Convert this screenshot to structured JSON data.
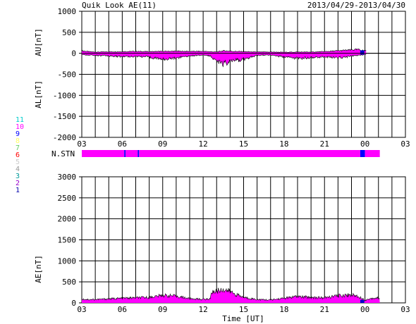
{
  "header": {
    "title": "Quik Look AE(11)",
    "date_range": "2013/04/29-2013/04/30"
  },
  "colors": {
    "fill": "#ff00ff",
    "highlight": "#0000cc",
    "axis": "#000000"
  },
  "station_legend": {
    "items": [
      {
        "label": "11",
        "color": "#00cccc"
      },
      {
        "label": "10",
        "color": "#ff00ff"
      },
      {
        "label": "9",
        "color": "#0000ff"
      },
      {
        "label": "8",
        "color": "#ffff66"
      },
      {
        "label": "7",
        "color": "#66cc66"
      },
      {
        "label": "6",
        "color": "#ff0000"
      },
      {
        "label": "5",
        "color": "#cccccc"
      },
      {
        "label": "4",
        "color": "#999999"
      },
      {
        "label": "3",
        "color": "#009999"
      },
      {
        "label": "2",
        "color": "#9900cc"
      },
      {
        "label": "1",
        "color": "#0000aa"
      }
    ]
  },
  "chart_data": [
    {
      "type": "area",
      "name": "AU/AL panel",
      "ylabel_top": "AU[nT]",
      "ylabel_bottom": "AL[nT]",
      "x_ticks": [
        "03",
        "06",
        "09",
        "12",
        "15",
        "18",
        "21",
        "00",
        "03"
      ],
      "xlim_hours": [
        3,
        27
      ],
      "ylim": [
        -2000,
        1000
      ],
      "y_ticks": [
        1000,
        500,
        0,
        -500,
        -1000,
        -1500,
        -2000
      ],
      "grid": true,
      "data_end_hour": 24.1,
      "highlight_hours": [
        23.65,
        23.95
      ],
      "series": [
        {
          "name": "AU",
          "x": [
            3,
            3.5,
            4,
            5,
            6,
            7,
            8,
            9,
            10,
            11,
            12,
            12.5,
            13,
            13.5,
            14,
            15,
            16,
            17,
            18,
            19,
            20,
            21,
            22,
            23,
            23.5,
            24,
            24.1
          ],
          "values": [
            60,
            40,
            30,
            35,
            40,
            45,
            40,
            45,
            50,
            45,
            45,
            40,
            30,
            60,
            50,
            40,
            30,
            30,
            25,
            30,
            30,
            40,
            60,
            80,
            90,
            60,
            70
          ]
        },
        {
          "name": "AL",
          "x": [
            3,
            3.5,
            4,
            5,
            6,
            7,
            8,
            9,
            10,
            11,
            12,
            12.5,
            13,
            13.5,
            14,
            15,
            16,
            17,
            18,
            19,
            20,
            21,
            22,
            23,
            23.5,
            24,
            24.1
          ],
          "values": [
            -30,
            -40,
            -50,
            -60,
            -80,
            -70,
            -90,
            -140,
            -110,
            -60,
            -40,
            -60,
            -180,
            -250,
            -200,
            -140,
            -50,
            -40,
            -90,
            -120,
            -100,
            -80,
            -110,
            -70,
            -50,
            -30,
            -20
          ]
        }
      ]
    },
    {
      "type": "bar",
      "name": "N.STN",
      "label": "N.STN",
      "xlim_hours": [
        3,
        27
      ],
      "segments": [
        {
          "start": 3,
          "end": 6.15,
          "station_count": 10
        },
        {
          "start": 6.15,
          "end": 6.25,
          "station_count": 9
        },
        {
          "start": 6.25,
          "end": 7.15,
          "station_count": 10
        },
        {
          "start": 7.15,
          "end": 7.25,
          "station_count": 9
        },
        {
          "start": 7.25,
          "end": 23.65,
          "station_count": 10
        },
        {
          "start": 23.65,
          "end": 24.0,
          "station_count": 9
        },
        {
          "start": 24.0,
          "end": 25.1,
          "station_count": 10
        }
      ]
    },
    {
      "type": "area",
      "name": "AE panel",
      "ylabel": "AE[nT]",
      "xlabel": "Time [UT]",
      "x_ticks": [
        "03",
        "06",
        "09",
        "12",
        "15",
        "18",
        "21",
        "00",
        "03"
      ],
      "xlim_hours": [
        3,
        27
      ],
      "ylim": [
        0,
        3000
      ],
      "y_ticks": [
        3000,
        2500,
        2000,
        1500,
        1000,
        500,
        0
      ],
      "grid": true,
      "highlight_hours": [
        23.65,
        23.95
      ],
      "series": [
        {
          "name": "AE",
          "x": [
            3,
            3.5,
            4,
            5,
            6,
            7,
            8,
            9,
            10,
            11,
            12,
            12.5,
            12.6,
            13,
            13.5,
            14,
            14.5,
            15,
            16,
            17,
            18,
            19,
            20,
            21,
            22,
            23,
            23.5,
            24,
            24.5,
            25.1
          ],
          "values": [
            90,
            80,
            80,
            95,
            110,
            120,
            130,
            180,
            160,
            100,
            85,
            90,
            250,
            280,
            320,
            270,
            190,
            130,
            80,
            70,
            110,
            150,
            130,
            120,
            170,
            190,
            160,
            60,
            110,
            120
          ]
        }
      ]
    }
  ]
}
